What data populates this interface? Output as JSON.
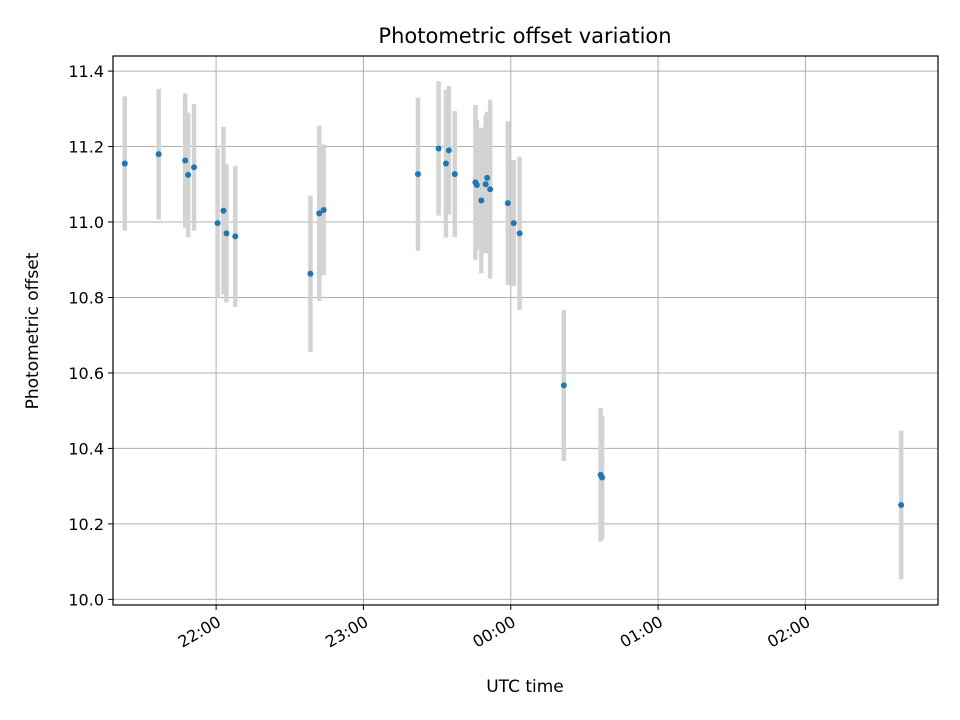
{
  "chart_data": {
    "type": "scatter",
    "title": "Photometric offset variation",
    "xlabel": "UTC time",
    "ylabel": "Photometric offset",
    "x_unit": "UTC time (hours since 00:00, evening of previous day negative)",
    "xlim": [
      -2.7,
      2.9
    ],
    "ylim": [
      9.985,
      11.44
    ],
    "x_ticks": [
      {
        "value": -2,
        "label": "22:00"
      },
      {
        "value": -1,
        "label": "23:00"
      },
      {
        "value": 0,
        "label": "00:00"
      },
      {
        "value": 1,
        "label": "01:00"
      },
      {
        "value": 2,
        "label": "02:00"
      }
    ],
    "y_ticks": [
      {
        "value": 10.0,
        "label": "10.0"
      },
      {
        "value": 10.2,
        "label": "10.2"
      },
      {
        "value": 10.4,
        "label": "10.4"
      },
      {
        "value": 10.6,
        "label": "10.6"
      },
      {
        "value": 10.8,
        "label": "10.8"
      },
      {
        "value": 11.0,
        "label": "11.0"
      },
      {
        "value": 11.2,
        "label": "11.2"
      },
      {
        "value": 11.4,
        "label": "11.4"
      }
    ],
    "grid": true,
    "colors": {
      "point": "#1f77b4",
      "errorbar": "#d3d3d3",
      "grid": "#b0b0b0"
    },
    "series": [
      {
        "points": [
          {
            "x": -2.62,
            "y": 11.155,
            "err": 0.178
          },
          {
            "x": -2.39,
            "y": 11.18,
            "err": 0.173
          },
          {
            "x": -2.21,
            "y": 11.163,
            "err": 0.178
          },
          {
            "x": -2.19,
            "y": 11.125,
            "err": 0.165
          },
          {
            "x": -2.15,
            "y": 11.145,
            "err": 0.168
          },
          {
            "x": -1.99,
            "y": 10.997,
            "err": 0.198
          },
          {
            "x": -1.95,
            "y": 11.03,
            "err": 0.222
          },
          {
            "x": -1.93,
            "y": 10.97,
            "err": 0.183
          },
          {
            "x": -1.87,
            "y": 10.962,
            "err": 0.187
          },
          {
            "x": -1.36,
            "y": 10.863,
            "err": 0.207
          },
          {
            "x": -1.3,
            "y": 11.023,
            "err": 0.232
          },
          {
            "x": -1.27,
            "y": 11.032,
            "err": 0.173
          },
          {
            "x": -0.63,
            "y": 11.127,
            "err": 0.203
          },
          {
            "x": -0.49,
            "y": 11.195,
            "err": 0.178
          },
          {
            "x": -0.44,
            "y": 11.155,
            "err": 0.196
          },
          {
            "x": -0.42,
            "y": 11.19,
            "err": 0.17
          },
          {
            "x": -0.38,
            "y": 11.127,
            "err": 0.167
          },
          {
            "x": -0.24,
            "y": 11.105,
            "err": 0.205
          },
          {
            "x": -0.23,
            "y": 11.098,
            "err": 0.172
          },
          {
            "x": -0.2,
            "y": 11.057,
            "err": 0.193
          },
          {
            "x": -0.17,
            "y": 11.1,
            "err": 0.183
          },
          {
            "x": -0.16,
            "y": 11.117,
            "err": 0.175
          },
          {
            "x": -0.14,
            "y": 11.087,
            "err": 0.237
          },
          {
            "x": -0.02,
            "y": 11.05,
            "err": 0.217
          },
          {
            "x": 0.02,
            "y": 10.997,
            "err": 0.167
          },
          {
            "x": 0.06,
            "y": 10.97,
            "err": 0.203
          },
          {
            "x": 0.36,
            "y": 10.567,
            "err": 0.2
          },
          {
            "x": 0.61,
            "y": 10.33,
            "err": 0.177
          },
          {
            "x": 0.62,
            "y": 10.323,
            "err": 0.163
          },
          {
            "x": 2.65,
            "y": 10.25,
            "err": 0.197
          }
        ]
      }
    ]
  }
}
